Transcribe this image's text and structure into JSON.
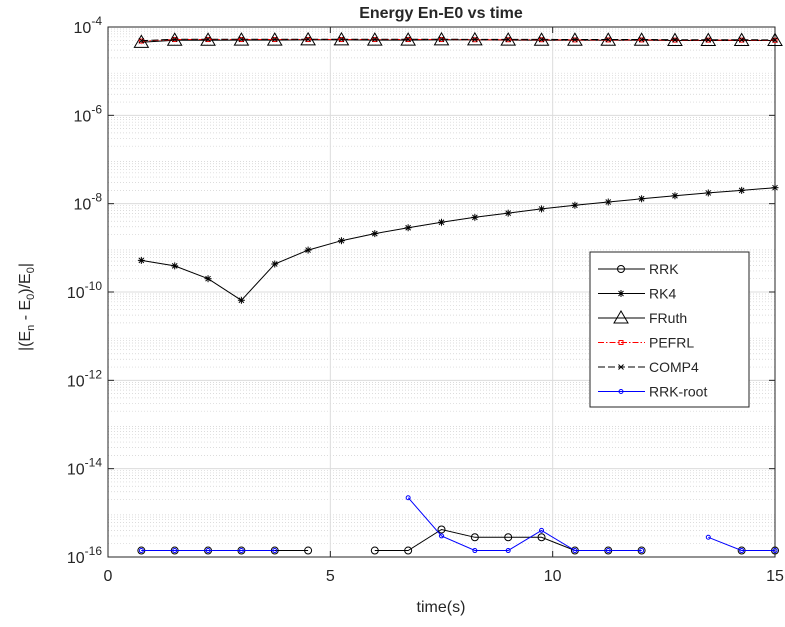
{
  "chart_data": {
    "type": "line",
    "title": "Energy En-E0 vs time",
    "xlabel": "time(s)",
    "ylabel": {
      "p1": "|(E",
      "s1": "n",
      "p2": " - E",
      "s2": "0",
      "p3": ")/E",
      "s3": "0",
      "p4": "|"
    },
    "xlim": [
      0,
      15
    ],
    "ylim": [
      1e-16,
      0.0001
    ],
    "yscale": "log",
    "grid": true,
    "legend_position": "right",
    "xticks": [
      0,
      5,
      10,
      15
    ],
    "xtick_labels": [
      "0",
      "5",
      "10",
      "15"
    ],
    "yticks": [
      -16,
      -14,
      -12,
      -10,
      -8,
      -6,
      -4
    ],
    "ytick_base": "10",
    "ytick_exponents": [
      "-16",
      "-14",
      "-12",
      "-10",
      "-8",
      "-6",
      "-4"
    ],
    "series": [
      {
        "name": "RRK",
        "color": "#000000",
        "marker": "circle",
        "dash": "",
        "segments": [
          [
            [
              0.75,
              1.4e-16
            ],
            [
              1.5,
              1.4e-16
            ],
            [
              2.25,
              1.4e-16
            ],
            [
              3.0,
              1.4e-16
            ],
            [
              3.75,
              1.4e-16
            ],
            [
              4.5,
              1.4e-16
            ]
          ],
          [
            [
              6.0,
              1.4e-16
            ],
            [
              6.75,
              1.4e-16
            ],
            [
              7.5,
              4.2e-16
            ],
            [
              8.25,
              2.8e-16
            ],
            [
              9.0,
              2.8e-16
            ],
            [
              9.75,
              2.8e-16
            ],
            [
              10.5,
              1.4e-16
            ],
            [
              11.25,
              1.4e-16
            ],
            [
              12.0,
              1.4e-16
            ]
          ],
          [
            [
              14.25,
              1.4e-16
            ],
            [
              15.0,
              1.4e-16
            ]
          ]
        ]
      },
      {
        "name": "RK4",
        "color": "#000000",
        "marker": "star",
        "dash": "",
        "segments": [
          [
            [
              0.75,
              5.2e-10
            ],
            [
              1.5,
              3.9e-10
            ],
            [
              2.25,
              2e-10
            ],
            [
              3.0,
              6.5e-11
            ],
            [
              3.75,
              4.3e-10
            ],
            [
              4.5,
              8.9e-10
            ],
            [
              5.25,
              1.45e-09
            ],
            [
              6.0,
              2.1e-09
            ],
            [
              6.75,
              2.85e-09
            ],
            [
              7.5,
              3.8e-09
            ],
            [
              8.25,
              4.9e-09
            ],
            [
              9.0,
              6.1e-09
            ],
            [
              9.75,
              7.6e-09
            ],
            [
              10.5,
              9.2e-09
            ],
            [
              11.25,
              1.09e-08
            ],
            [
              12.0,
              1.29e-08
            ],
            [
              12.75,
              1.51e-08
            ],
            [
              13.5,
              1.75e-08
            ],
            [
              14.25,
              2e-08
            ],
            [
              15.0,
              2.3e-08
            ]
          ]
        ]
      },
      {
        "name": "FRuth",
        "color": "#000000",
        "marker": "triangle",
        "dash": "",
        "segments": [
          [
            [
              0.75,
              4.5e-05
            ],
            [
              1.5,
              5e-05
            ],
            [
              2.25,
              5e-05
            ],
            [
              3.0,
              5.05e-05
            ],
            [
              3.75,
              5.05e-05
            ],
            [
              4.5,
              5.1e-05
            ],
            [
              5.25,
              5.1e-05
            ],
            [
              6.0,
              5.05e-05
            ],
            [
              6.75,
              5.05e-05
            ],
            [
              7.5,
              5.1e-05
            ],
            [
              8.25,
              5.1e-05
            ],
            [
              9.0,
              5.05e-05
            ],
            [
              9.75,
              5e-05
            ],
            [
              10.5,
              5e-05
            ],
            [
              11.25,
              5e-05
            ],
            [
              12.0,
              5e-05
            ],
            [
              12.75,
              4.95e-05
            ],
            [
              13.5,
              4.95e-05
            ],
            [
              14.25,
              4.95e-05
            ],
            [
              15.0,
              4.95e-05
            ]
          ]
        ]
      },
      {
        "name": "PEFRL",
        "color": "#ff0000",
        "marker": "square",
        "dash": "6 2 1.5 2",
        "segments": [
          [
            [
              0.75,
              4.8e-05
            ],
            [
              1.5,
              5.2e-05
            ],
            [
              2.25,
              5.2e-05
            ],
            [
              3.0,
              5.2e-05
            ],
            [
              3.75,
              5.2e-05
            ],
            [
              4.5,
              5.2e-05
            ],
            [
              5.25,
              5.2e-05
            ],
            [
              6.0,
              5.2e-05
            ],
            [
              6.75,
              5.2e-05
            ],
            [
              7.5,
              5.2e-05
            ],
            [
              8.25,
              5.15e-05
            ],
            [
              9.0,
              5.15e-05
            ],
            [
              9.75,
              5.15e-05
            ],
            [
              10.5,
              5.1e-05
            ],
            [
              11.25,
              5.1e-05
            ],
            [
              12.0,
              5.1e-05
            ],
            [
              12.75,
              5.05e-05
            ],
            [
              13.5,
              5.05e-05
            ],
            [
              14.25,
              5.05e-05
            ],
            [
              15.0,
              5e-05
            ]
          ]
        ]
      },
      {
        "name": "COMP4",
        "color": "#000000",
        "marker": "x",
        "dash": "7 3",
        "segments": [
          [
            [
              0.75,
              4.9e-05
            ],
            [
              1.5,
              5.3e-05
            ],
            [
              2.25,
              5.3e-05
            ],
            [
              3.0,
              5.3e-05
            ],
            [
              3.75,
              5.3e-05
            ],
            [
              4.5,
              5.3e-05
            ],
            [
              5.25,
              5.3e-05
            ],
            [
              6.0,
              5.3e-05
            ],
            [
              6.75,
              5.3e-05
            ],
            [
              7.5,
              5.3e-05
            ],
            [
              8.25,
              5.25e-05
            ],
            [
              9.0,
              5.25e-05
            ],
            [
              9.75,
              5.25e-05
            ],
            [
              10.5,
              5.2e-05
            ],
            [
              11.25,
              5.2e-05
            ],
            [
              12.0,
              5.2e-05
            ],
            [
              12.75,
              5.15e-05
            ],
            [
              13.5,
              5.15e-05
            ],
            [
              14.25,
              5.15e-05
            ],
            [
              15.0,
              5.1e-05
            ]
          ]
        ]
      },
      {
        "name": "RRK-root",
        "color": "#0000ff",
        "marker": "dot",
        "dash": "",
        "segments": [
          [
            [
              0.75,
              1.4e-16
            ],
            [
              1.5,
              1.4e-16
            ],
            [
              2.25,
              1.4e-16
            ],
            [
              3.0,
              1.4e-16
            ],
            [
              3.75,
              1.4e-16
            ]
          ],
          [
            [
              6.75,
              2.2e-15
            ],
            [
              7.5,
              3e-16
            ],
            [
              8.25,
              1.4e-16
            ],
            [
              9.0,
              1.4e-16
            ],
            [
              9.75,
              4e-16
            ],
            [
              10.5,
              1.4e-16
            ],
            [
              11.25,
              1.4e-16
            ],
            [
              12.0,
              1.4e-16
            ]
          ],
          [
            [
              13.5,
              2.8e-16
            ],
            [
              14.25,
              1.4e-16
            ],
            [
              15.0,
              1.4e-16
            ]
          ]
        ]
      }
    ]
  }
}
